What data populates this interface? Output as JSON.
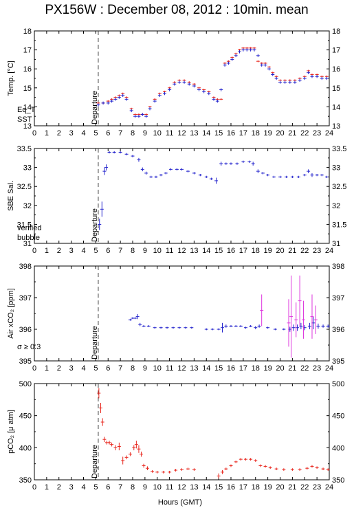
{
  "title": "PX156W : December 08, 2012 : 10min. mean",
  "xlabel": "Hours (GMT)",
  "xticks": [
    "0",
    "1",
    "2",
    "3",
    "4",
    "5",
    "6",
    "7",
    "8",
    "9",
    "10",
    "11",
    "12",
    "13",
    "14",
    "15",
    "16",
    "17",
    "18",
    "19",
    "20",
    "21",
    "22",
    "23",
    "24"
  ],
  "departure_label": "Departure",
  "colors": {
    "red": "#e8251c",
    "blue": "#2222cc",
    "magenta": "#dd33dd",
    "dashed": "#444444"
  },
  "chart_data": [
    {
      "type": "scatter",
      "ylabel": "Temp. [°C]",
      "xlim": [
        0,
        24
      ],
      "ylim": [
        13,
        18
      ],
      "yticks": [
        "13",
        "14",
        "15",
        "16",
        "17",
        "18"
      ],
      "departure_x": 5.2,
      "legend": [
        {
          "text": "Eq_T",
          "color": "red"
        },
        {
          "text": "SST",
          "color": "blue"
        }
      ],
      "series": [
        {
          "name": "Eq_T",
          "color": "red",
          "err": 0.05,
          "x": [
            5.2,
            5.6,
            6.0,
            6.3,
            6.6,
            6.9,
            7.2,
            7.5,
            7.9,
            8.2,
            8.5,
            8.8,
            9.1,
            9.4,
            9.8,
            10.2,
            10.6,
            11.0,
            11.4,
            11.8,
            12.2,
            12.6,
            13.0,
            13.4,
            13.8,
            14.2,
            14.6,
            14.9,
            15.2,
            15.5,
            15.8,
            16.1,
            16.4,
            16.7,
            17.0,
            17.3,
            17.6,
            17.9,
            18.2,
            18.5,
            18.8,
            19.1,
            19.4,
            19.7,
            20.0,
            20.4,
            20.8,
            21.2,
            21.6,
            22.0,
            22.3,
            22.6,
            23.0,
            23.4,
            23.8
          ],
          "y": [
            14.2,
            14.2,
            14.3,
            14.4,
            14.5,
            14.6,
            14.7,
            14.5,
            13.9,
            13.6,
            13.6,
            13.6,
            13.6,
            14.0,
            14.4,
            14.7,
            14.8,
            15.0,
            15.3,
            15.4,
            15.4,
            15.3,
            15.2,
            15.0,
            14.9,
            14.8,
            14.5,
            14.4,
            14.4,
            16.3,
            16.4,
            16.6,
            16.8,
            17.0,
            17.1,
            17.1,
            17.1,
            17.1,
            16.4,
            16.3,
            16.3,
            16.1,
            15.8,
            15.6,
            15.4,
            15.4,
            15.4,
            15.4,
            15.5,
            15.6,
            15.9,
            15.7,
            15.7,
            15.6,
            15.6
          ]
        },
        {
          "name": "SST",
          "color": "blue",
          "err": 0.08,
          "x": [
            5.2,
            5.6,
            6.0,
            6.3,
            6.6,
            6.9,
            7.2,
            7.5,
            7.9,
            8.2,
            8.5,
            8.8,
            9.1,
            9.4,
            9.8,
            10.2,
            10.6,
            11.0,
            11.4,
            11.8,
            12.2,
            12.6,
            13.0,
            13.4,
            13.8,
            14.2,
            14.6,
            14.9,
            15.2,
            15.5,
            15.8,
            16.1,
            16.4,
            16.7,
            17.0,
            17.3,
            17.6,
            17.9,
            18.2,
            18.5,
            18.8,
            19.1,
            19.4,
            19.7,
            20.0,
            20.4,
            20.8,
            21.2,
            21.6,
            22.0,
            22.3,
            22.6,
            23.0,
            23.4,
            23.8
          ],
          "y": [
            14.1,
            14.2,
            14.2,
            14.3,
            14.4,
            14.5,
            14.6,
            14.4,
            13.8,
            13.5,
            13.5,
            13.6,
            13.5,
            13.9,
            14.3,
            14.6,
            14.7,
            14.9,
            15.2,
            15.3,
            15.3,
            15.2,
            15.1,
            14.9,
            14.8,
            14.7,
            14.4,
            14.3,
            14.9,
            16.2,
            16.3,
            16.5,
            16.7,
            16.9,
            17.0,
            17.0,
            17.0,
            17.0,
            16.7,
            16.2,
            16.2,
            16.0,
            15.7,
            15.5,
            15.3,
            15.3,
            15.3,
            15.3,
            15.4,
            15.5,
            15.8,
            15.6,
            15.6,
            15.5,
            15.5
          ]
        }
      ]
    },
    {
      "type": "scatter",
      "ylabel": "SBE Sal.",
      "xlim": [
        0,
        24
      ],
      "ylim": [
        31,
        33.5
      ],
      "yticks": [
        "31",
        "31.5",
        "32",
        "32.5",
        "33",
        "33.5"
      ],
      "departure_x": 5.2,
      "legend": [
        {
          "text": "verified",
          "color": "blue"
        },
        {
          "text": "bubble",
          "color": "magenta"
        }
      ],
      "series": [
        {
          "name": "verified",
          "color": "blue",
          "err": 0.04,
          "x": [
            5.3,
            5.5,
            5.7,
            5.85,
            6.1,
            6.5,
            7.0,
            7.5,
            8.0,
            8.5,
            8.8,
            9.1,
            9.5,
            9.9,
            10.3,
            10.7,
            11.1,
            11.6,
            12.0,
            12.5,
            13.0,
            13.5,
            14.0,
            14.4,
            14.8,
            15.2,
            15.6,
            16.0,
            16.5,
            17.0,
            17.5,
            17.8,
            18.2,
            18.6,
            19.0,
            19.5,
            20.0,
            20.5,
            21.0,
            21.5,
            22.0,
            22.3,
            22.6,
            23.0,
            23.4,
            23.8
          ],
          "y": [
            31.5,
            31.9,
            32.9,
            33.0,
            33.4,
            33.4,
            33.4,
            33.35,
            33.3,
            33.2,
            32.95,
            32.85,
            32.75,
            32.75,
            32.8,
            32.85,
            32.95,
            32.95,
            32.95,
            32.9,
            32.85,
            32.8,
            32.75,
            32.7,
            32.65,
            33.1,
            33.1,
            33.1,
            33.1,
            33.15,
            33.15,
            33.1,
            32.9,
            32.85,
            32.8,
            32.75,
            32.75,
            32.75,
            32.75,
            32.75,
            32.8,
            32.9,
            32.8,
            32.8,
            32.8,
            32.75
          ],
          "e": [
            0.15,
            0.2,
            0.1,
            0.08,
            0.03,
            0.03,
            0.03,
            0.03,
            0.03,
            0.05,
            0.05,
            0.04,
            0.03,
            0.03,
            0.03,
            0.03,
            0.03,
            0.03,
            0.03,
            0.03,
            0.03,
            0.03,
            0.03,
            0.03,
            0.08,
            0.05,
            0.03,
            0.03,
            0.03,
            0.03,
            0.03,
            0.05,
            0.05,
            0.03,
            0.03,
            0.03,
            0.03,
            0.03,
            0.03,
            0.03,
            0.03,
            0.05,
            0.05,
            0.03,
            0.03,
            0.03
          ]
        }
      ]
    },
    {
      "type": "scatter",
      "ylabel": "Air xCO₂ [ppm]",
      "xlim": [
        0,
        24
      ],
      "ylim": [
        395,
        398
      ],
      "yticks": [
        "395",
        "396",
        "397",
        "398"
      ],
      "departure_x": 5.2,
      "legend": [
        {
          "text": "σ ≥ 0.3",
          "color": "magenta"
        }
      ],
      "series": [
        {
          "name": "Air xCO2",
          "color": "blue",
          "x": [
            7.8,
            8.0,
            8.2,
            8.4,
            8.6,
            8.9,
            9.3,
            9.8,
            10.3,
            10.8,
            11.3,
            11.8,
            12.3,
            12.8,
            14.0,
            14.5,
            15.0,
            15.3,
            15.6,
            16.0,
            16.4,
            16.8,
            17.2,
            17.6,
            18.0,
            18.3,
            19.0,
            19.6,
            20.3,
            20.8,
            21.1,
            21.4,
            21.7,
            22.0,
            22.4,
            22.7,
            23.1,
            23.5,
            23.9
          ],
          "y": [
            396.3,
            396.35,
            396.35,
            396.4,
            396.15,
            396.1,
            396.1,
            396.05,
            396.05,
            396.05,
            396.05,
            396.05,
            396.05,
            396.05,
            396.0,
            396.0,
            396.0,
            396.05,
            396.1,
            396.1,
            396.1,
            396.1,
            396.05,
            396.1,
            396.05,
            396.1,
            396.05,
            396.0,
            396.0,
            396.0,
            396.05,
            396.05,
            396.1,
            396.05,
            396.1,
            396.2,
            396.1,
            396.1,
            396.1
          ],
          "e": [
            0.03,
            0.03,
            0.03,
            0.08,
            0.05,
            0.03,
            0.03,
            0.03,
            0.03,
            0.03,
            0.03,
            0.03,
            0.03,
            0.03,
            0.03,
            0.03,
            0.03,
            0.15,
            0.05,
            0.03,
            0.03,
            0.03,
            0.03,
            0.03,
            0.05,
            0.05,
            0.03,
            0.03,
            0.03,
            0.08,
            0.1,
            0.1,
            0.1,
            0.08,
            0.1,
            0.2,
            0.08,
            0.05,
            0.05
          ]
        },
        {
          "name": "σ ≥ 0.3",
          "color": "magenta",
          "x": [
            18.5,
            20.7,
            20.9,
            21.3,
            21.6,
            21.9,
            22.6,
            22.9
          ],
          "y": [
            396.6,
            396.2,
            396.4,
            396.3,
            396.9,
            396.3,
            396.4,
            396.3
          ],
          "e": [
            0.5,
            0.75,
            1.3,
            0.55,
            0.8,
            0.6,
            0.7,
            0.45
          ]
        }
      ]
    },
    {
      "type": "scatter",
      "ylabel": "pCO₂ [μ atm]",
      "xlim": [
        0,
        24
      ],
      "ylim": [
        350,
        500
      ],
      "yticks": [
        "350",
        "400",
        "450",
        "500"
      ],
      "departure_x": 5.2,
      "legend": [],
      "series": [
        {
          "name": "pCO2",
          "color": "red",
          "x": [
            5.25,
            5.4,
            5.55,
            5.7,
            5.9,
            6.1,
            6.3,
            6.6,
            6.9,
            7.2,
            7.5,
            7.8,
            8.1,
            8.3,
            8.5,
            8.7,
            8.9,
            9.2,
            9.6,
            10.0,
            10.5,
            11.0,
            11.5,
            12.0,
            12.5,
            13.0,
            15.0,
            15.3,
            15.6,
            16.0,
            16.4,
            16.8,
            17.2,
            17.6,
            18.0,
            18.4,
            18.8,
            19.2,
            19.7,
            20.3,
            21.0,
            21.6,
            22.2,
            22.6,
            23.0,
            23.5,
            23.9
          ],
          "y": [
            485,
            462,
            440,
            413,
            408,
            408,
            405,
            400,
            402,
            380,
            385,
            390,
            400,
            405,
            398,
            390,
            372,
            368,
            363,
            362,
            362,
            362,
            365,
            366,
            367,
            366,
            356,
            362,
            367,
            372,
            378,
            382,
            382,
            382,
            380,
            372,
            371,
            369,
            367,
            366,
            366,
            366,
            368,
            371,
            369,
            367,
            366
          ],
          "e": [
            8,
            8,
            6,
            4,
            3,
            3,
            3,
            4,
            6,
            6,
            3,
            3,
            4,
            6,
            6,
            4,
            3,
            3,
            2,
            2,
            2,
            2,
            2,
            2,
            2,
            2,
            4,
            3,
            2,
            2,
            2,
            2,
            2,
            2,
            2,
            2,
            2,
            2,
            2,
            2,
            2,
            2,
            2,
            2,
            2,
            2,
            2
          ]
        }
      ]
    }
  ]
}
